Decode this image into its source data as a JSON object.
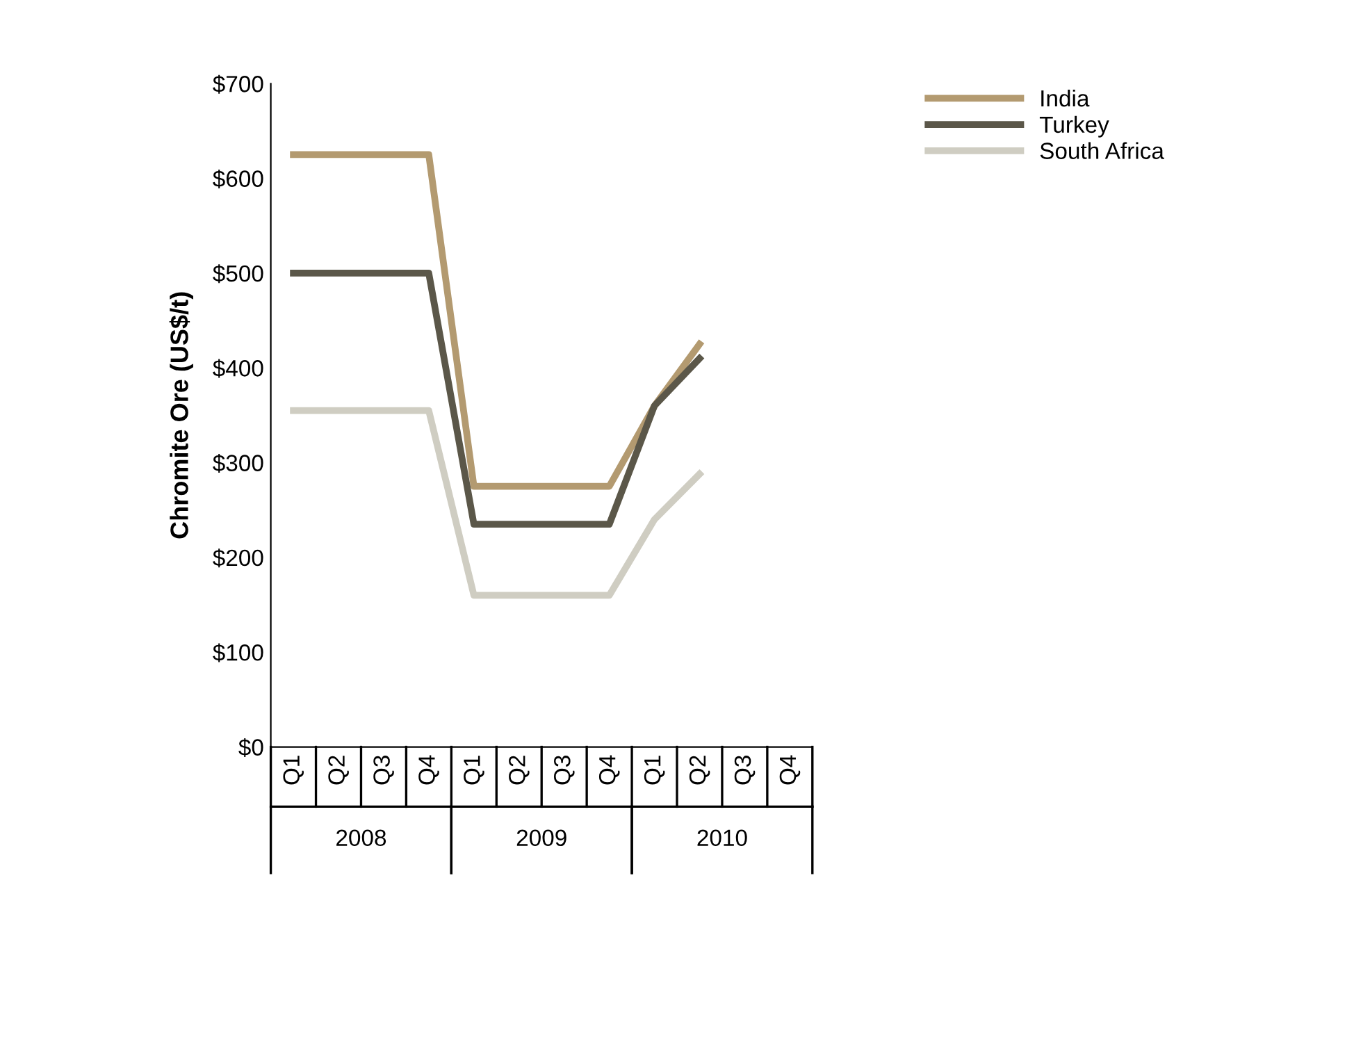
{
  "chart_data": {
    "type": "line",
    "ylabel": "Chromite Ore (US$/t)",
    "categories": [
      "Q1",
      "Q2",
      "Q3",
      "Q4",
      "Q1",
      "Q2",
      "Q3",
      "Q4",
      "Q1",
      "Q2",
      "Q3",
      "Q4"
    ],
    "annotations": [
      "2008",
      "2009",
      "2010"
    ],
    "series": [
      {
        "name": "India",
        "color": "#b39a70",
        "values": [
          625,
          625,
          625,
          625,
          275,
          275,
          275,
          275,
          360,
          425,
          null,
          null
        ]
      },
      {
        "name": "Turkey",
        "color": "#5b5749",
        "values": [
          500,
          500,
          500,
          500,
          235,
          235,
          235,
          235,
          360,
          410,
          null,
          null
        ]
      },
      {
        "name": "South Africa",
        "color": "#cfcdc2",
        "values": [
          355,
          355,
          355,
          355,
          160,
          160,
          160,
          160,
          240,
          288,
          null,
          null
        ]
      }
    ],
    "ylim": [
      0,
      700
    ],
    "yticks": [
      {
        "value": 0,
        "label": "$0"
      },
      {
        "value": 100,
        "label": "$100"
      },
      {
        "value": 200,
        "label": "$200"
      },
      {
        "value": 300,
        "label": "$300"
      },
      {
        "value": 400,
        "label": "$400"
      },
      {
        "value": 500,
        "label": "$500"
      },
      {
        "value": 600,
        "label": "$600"
      },
      {
        "value": 700,
        "label": "$700"
      }
    ],
    "grid": false,
    "legend": "top right",
    "marker": "none",
    "line_style": "solid"
  }
}
